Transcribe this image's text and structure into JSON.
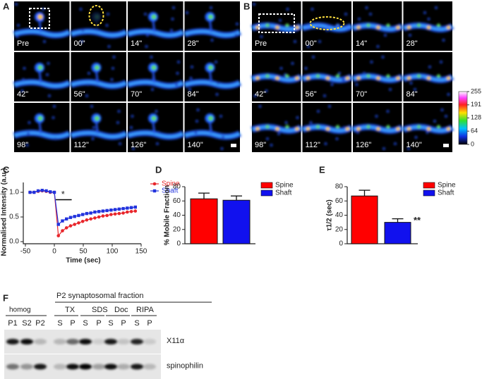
{
  "panels": {
    "labels": [
      "A",
      "B",
      "C",
      "D",
      "E",
      "F"
    ]
  },
  "panel_a": {
    "time_labels": [
      "Pre",
      "00\"",
      "14\"",
      "28\"",
      "42\"",
      "56\"",
      "70\"",
      "84\"",
      "98\"",
      "112\"",
      "126\"",
      "140\""
    ]
  },
  "panel_b": {
    "time_labels": [
      "Pre",
      "00\"",
      "14\"",
      "28\"",
      "42\"",
      "56\"",
      "70\"",
      "84\"",
      "98\"",
      "112\"",
      "126\"",
      "140\""
    ]
  },
  "colorbar": {
    "ticks": [
      255,
      191,
      128,
      64,
      0
    ]
  },
  "chart_data": [
    {
      "type": "line",
      "ylabel": "Normalised Intensity (a.u.)",
      "xlabel": "Time (sec)",
      "x": [
        -42,
        -35,
        -28,
        -21,
        -14,
        -7,
        0,
        7,
        14,
        21,
        28,
        35,
        42,
        49,
        56,
        63,
        70,
        77,
        84,
        91,
        98,
        105,
        112,
        119,
        126,
        133,
        140
      ],
      "series": [
        {
          "name": "Spine",
          "color": "#e8262b",
          "values": [
            1.0,
            1.0,
            1.02,
            1.03,
            1.02,
            1.0,
            1.0,
            0.12,
            0.22,
            0.28,
            0.32,
            0.35,
            0.38,
            0.41,
            0.44,
            0.46,
            0.48,
            0.5,
            0.52,
            0.53,
            0.55,
            0.56,
            0.57,
            0.58,
            0.6,
            0.61,
            0.62
          ]
        },
        {
          "name": "Shaft",
          "color": "#2233dd",
          "values": [
            1.0,
            1.0,
            1.03,
            1.04,
            1.03,
            1.01,
            1.0,
            0.35,
            0.42,
            0.46,
            0.49,
            0.51,
            0.53,
            0.55,
            0.57,
            0.58,
            0.6,
            0.61,
            0.62,
            0.63,
            0.64,
            0.65,
            0.66,
            0.67,
            0.68,
            0.69,
            0.7
          ]
        }
      ],
      "xlim": [
        -50,
        150
      ],
      "xticks": [
        -50,
        0,
        50,
        100,
        150
      ],
      "ylim": [
        0,
        1.2
      ],
      "yticks": [
        {
          "value": 0,
          "label": "0.0"
        },
        0.5,
        {
          "value": 1,
          "label": "1.0"
        }
      ],
      "annotation": "*"
    },
    {
      "type": "bar",
      "ylabel": "% Mobile Fraction",
      "categories": [
        "Spine",
        "Shaft"
      ],
      "values": [
        63,
        61
      ],
      "errors": [
        8,
        6
      ],
      "colors": [
        "#ff0000",
        "#1111ee"
      ],
      "ylim": [
        0,
        80
      ],
      "yticks": [
        0,
        20,
        40,
        60,
        80
      ]
    },
    {
      "type": "bar",
      "ylabel": "τ1/2 (sec)",
      "categories": [
        "Spine",
        "Shaft"
      ],
      "values": [
        67,
        30
      ],
      "errors": [
        8,
        5
      ],
      "colors": [
        "#ff0000",
        "#1111ee"
      ],
      "ylim": [
        0,
        80
      ],
      "yticks": [
        0,
        20,
        40,
        60,
        80
      ],
      "annotation": "**"
    }
  ],
  "blot": {
    "homog": "homog",
    "fraction": "P2 synaptosomal fraction",
    "sub_labels": [
      "TX",
      "SDS",
      "Doc",
      "RIPA"
    ],
    "lanes": [
      "P1",
      "S2",
      "P2",
      "S",
      "P",
      "S",
      "P",
      "S",
      "P",
      "S",
      "P"
    ],
    "proteins": [
      "X11α",
      "spinophilin"
    ]
  }
}
